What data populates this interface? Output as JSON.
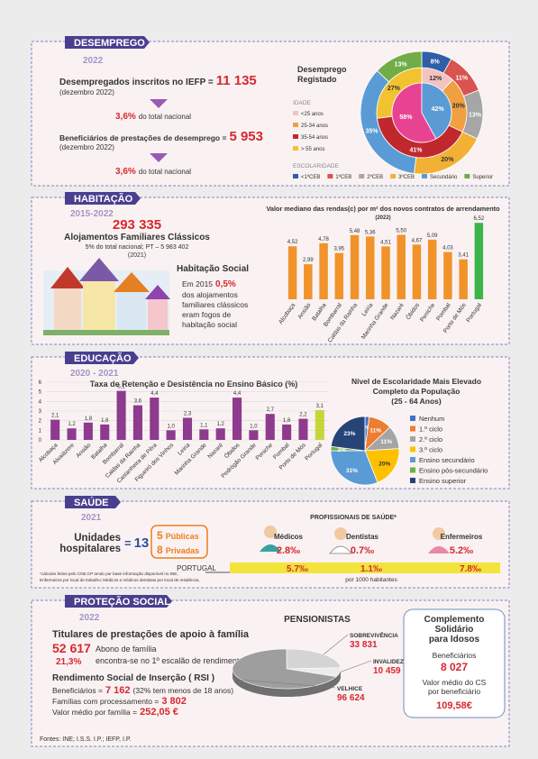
{
  "desemprego": {
    "title": "DESEMPREGO",
    "year": "2022",
    "registered": {
      "label": "Desempregados inscritos no IEFP  =",
      "value": "11 135",
      "date": "(dezembro 2022)",
      "share": "3,6%",
      "share_text": "do total nacional"
    },
    "benefits": {
      "label": "Beneficiários de prestações de desemprego =",
      "value": "5 953",
      "date": "(dezembro 2022)",
      "share": "3,6%",
      "share_text": "do total nacional"
    }
  },
  "habitacao": {
    "title": "HABITAÇÃO",
    "years": "2015-2022",
    "total": "293 335",
    "total_label": "Alojamentos Familiares Clássicos",
    "share": "5% do total nacional; PT – 5 983 402",
    "year_note": "(2021)",
    "social": {
      "title": "Habitação Social",
      "lead": "Em 2015",
      "share": "0,5%",
      "lines": [
        "dos alojamentos",
        "familiares clássicos",
        "eram fogos de",
        "habitação social"
      ]
    }
  },
  "educacao": {
    "title": "EDUCAÇÃO",
    "years": "2020 - 2021"
  },
  "saude": {
    "title": "SAÚDE",
    "year": "2021",
    "hospitals_lines": [
      "Unidades",
      "hospitalares"
    ],
    "equals": "=",
    "hospitals": "13",
    "public_count": "5",
    "public_label": "Públicas",
    "private_count": "8",
    "private_label": "Privadas",
    "professionals_title": "PROFISSIONAIS DE SAÚDE*",
    "professionals": [
      {
        "name": "Médicos",
        "local": "2.8‰",
        "portugal": "5.7‰"
      },
      {
        "name": "Dentistas",
        "local": "0.7‰",
        "portugal": "1.1‰"
      },
      {
        "name": "Enfermeiros",
        "local": "5.2‰",
        "portugal": "7.8‰"
      }
    ],
    "portugal_label": "PORTUGAL",
    "unit": "por 1000 habitantes",
    "notes": [
      "*cálculos feitos pelo CNE.CP tendo por base informação disponível no INE;",
      "Enfermeiros por local de trabalho; Médicos e médicos dentistas por local de residência."
    ]
  },
  "protecao_social": {
    "title": "PROTEÇÃO SOCIAL",
    "year": "2022",
    "family": {
      "title": "Titulares de prestações de apoio à família",
      "count": "52 617",
      "count_label": "Abono de família",
      "share": "21,3%",
      "share_label": "encontra-se no 1º escalão de rendimentos"
    },
    "rsi": {
      "title": "Rendimento Social de Inserção ( RSI )",
      "beneficiaries_label": "Beneficiários =",
      "beneficiaries": "7 162",
      "beneficiaries_note": "(32% tem menos de 18 anos)",
      "families_label": "Famílias com processamento =",
      "families": "3 802",
      "avg_label": "Valor médio por família =",
      "avg": "252,05 €"
    },
    "cs": {
      "title_lines": [
        "Complemento",
        "Solidário",
        "para Idosos"
      ],
      "beneficiaries_label": "Beneficiários",
      "beneficiaries": "8 027",
      "avg_lines": [
        "Valor médio do CS",
        "por beneficiário"
      ],
      "avg": "109,58€"
    }
  },
  "sources": "Fontes: INE; I.S.S. I.P.; IEFP, I.P.",
  "chart_data": [
    {
      "type": "donut",
      "title_lines": [
        "Desemprego",
        "Registado"
      ],
      "series": [
        {
          "name": "IDADE",
          "categories": [
            "<25 anos",
            "25-34 anos",
            "35-54 anos",
            "> 55 anos"
          ],
          "colors": [
            "#f4c2c0",
            "#f0a040",
            "#c0282d",
            "#f2c230"
          ],
          "values": [
            12,
            20,
            41,
            27
          ],
          "value_labels": [
            "12%",
            "20%",
            "41%",
            "27%"
          ]
        },
        {
          "name": "ESCOLARIDADE",
          "categories": [
            "<1ºCEB",
            "1ºCEB",
            "2ºCEB",
            "3ºCEB",
            "Secundário",
            "Superior"
          ],
          "colors": [
            "#2e5fa8",
            "#d9534f",
            "#a6a6a6",
            "#f2b134",
            "#5b9bd5",
            "#70ad47"
          ],
          "values": [
            8,
            11,
            13,
            20,
            35,
            13
          ],
          "value_labels": [
            "8%",
            "11%",
            "13%",
            "20%",
            "35%",
            "13%"
          ]
        },
        {
          "colors": [
            "#e84393",
            "#5b9bd5"
          ],
          "values": [
            58,
            42
          ],
          "value_labels": [
            "58%",
            "42%"
          ]
        }
      ]
    },
    {
      "type": "bar",
      "title": "Valor mediano das rendas(c) por m² dos novos contratos de arrendamento",
      "subtitle": "(2022)",
      "categories": [
        "Alcobaça",
        "Ansião",
        "Batalha",
        "Bombarral",
        "Caldas da Rainha",
        "Leiria",
        "Marinha Grande",
        "Nazaré",
        "Óbidos",
        "Peniche",
        "Pombal",
        "Porto de Mós",
        "Portugal"
      ],
      "values": [
        4.52,
        2.99,
        4.78,
        3.95,
        5.48,
        5.36,
        4.51,
        5.5,
        4.67,
        5.09,
        4.03,
        3.41,
        6.52
      ],
      "value_labels": [
        "4,52",
        "2,99",
        "4,78",
        "3,95",
        "5,48",
        "5,36",
        "4,51",
        "5,50",
        "4,67",
        "5,09",
        "4,03",
        "3,41",
        "6,52"
      ],
      "colors": [
        "#f0932b",
        "#f0932b",
        "#f0932b",
        "#f0932b",
        "#f0932b",
        "#f0932b",
        "#f0932b",
        "#f0932b",
        "#f0932b",
        "#f0932b",
        "#f0932b",
        "#f0932b",
        "#3cb44b"
      ]
    },
    {
      "type": "bar",
      "title": "Taxa de Retenção e Desistência no Ensino Básico (%)",
      "categories": [
        "Alcobaça",
        "Alvaiázere",
        "Ansião",
        "Batalha",
        "Bombarral",
        "Caldas da Rainha",
        "Castanheira de Pêra",
        "Figueiró dos Vinhos",
        "Leiria",
        "Marinha Grande",
        "Nazaré",
        "Óbidos",
        "Pedrógão Grande",
        "Peniche",
        "Pombal",
        "Porto de Mós",
        "Portugal"
      ],
      "values": [
        2.1,
        1.2,
        1.8,
        1.6,
        5.1,
        3.6,
        4.4,
        1.0,
        2.3,
        1.1,
        1.2,
        4.4,
        1.0,
        2.7,
        1.6,
        2.2,
        3.1
      ],
      "value_labels": [
        "2,1",
        "1,2",
        "1,8",
        "1,6",
        "5,1",
        "3,6",
        "4,4",
        "1,0",
        "2,3",
        "1,1",
        "1,2",
        "4,4",
        "1,0",
        "2,7",
        "1,6",
        "2,2",
        "3,1"
      ],
      "colors": [
        "#8e3a8e",
        "#8e3a8e",
        "#8e3a8e",
        "#8e3a8e",
        "#8e3a8e",
        "#8e3a8e",
        "#8e3a8e",
        "#8e3a8e",
        "#8e3a8e",
        "#8e3a8e",
        "#8e3a8e",
        "#8e3a8e",
        "#8e3a8e",
        "#8e3a8e",
        "#8e3a8e",
        "#8e3a8e",
        "#c5d63d"
      ],
      "ylim": [
        0,
        6
      ],
      "yticks": [
        0,
        1,
        2,
        3,
        4,
        5,
        6
      ],
      "grid": true
    },
    {
      "type": "pie",
      "title_lines": [
        "Nível de Escolaridade Mais Elevado",
        "Completo da População"
      ],
      "subtitle": "(25 - 64 Anos)",
      "categories": [
        "Nenhum",
        "1.º ciclo",
        "2.º ciclo",
        "3.º ciclo",
        "Ensino secundário",
        "Ensino pós-secundário",
        "Ensino superior"
      ],
      "values": [
        2,
        11,
        11,
        20,
        31,
        2,
        23
      ],
      "value_labels": [
        "2%",
        "11%",
        "11%",
        "20%",
        "31%",
        "2%",
        "23%"
      ],
      "colors": [
        "#4472c4",
        "#ed7d31",
        "#a5a5a5",
        "#ffc000",
        "#5b9bd5",
        "#70ad47",
        "#264478"
      ],
      "legend": "right"
    },
    {
      "type": "pie",
      "three_d": true,
      "title": "PENSIONISTAS",
      "categories": [
        "SOBREVIVÊNCIA",
        "INVALIDEZ",
        "VELHICE"
      ],
      "values": [
        33831,
        10459,
        96624
      ],
      "value_labels": [
        "33 831",
        "10 459",
        "96 624"
      ],
      "colors": [
        "#d4d4d4",
        "#ececec",
        "#9e9e9e"
      ]
    }
  ]
}
